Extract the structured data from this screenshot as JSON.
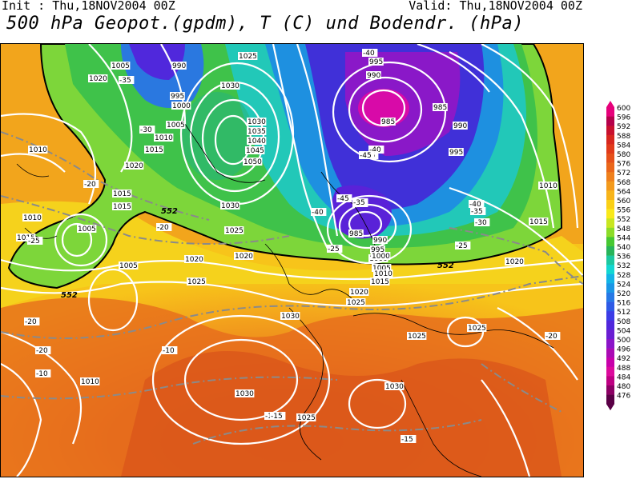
{
  "header": {
    "init": "Init : Thu,18NOV2004 00Z",
    "valid": "Valid: Thu,18NOV2004 00Z",
    "title": "500 hPa Geopot.(gpdm), T (C) und Bodendr. (hPa)"
  },
  "colorbar": {
    "levels": [
      "600",
      "596",
      "592",
      "588",
      "584",
      "580",
      "576",
      "572",
      "568",
      "564",
      "560",
      "556",
      "552",
      "548",
      "544",
      "540",
      "536",
      "532",
      "528",
      "524",
      "520",
      "516",
      "512",
      "508",
      "504",
      "500",
      "496",
      "492",
      "488",
      "484",
      "480",
      "476"
    ],
    "colors": [
      "#e6007a",
      "#b5004a",
      "#c8102e",
      "#d7261e",
      "#e13a1a",
      "#e6501a",
      "#ea661a",
      "#ef801c",
      "#f39a1c",
      "#f7b41a",
      "#fad016",
      "#f9e91a",
      "#c8e620",
      "#8cdc28",
      "#46c832",
      "#28b45a",
      "#1cc8a0",
      "#12d7d2",
      "#12b4e6",
      "#1a96e6",
      "#2678e6",
      "#2e5ae6",
      "#3c3ce6",
      "#5028dc",
      "#6a1ed2",
      "#8a14c8",
      "#aa0ab4",
      "#c800aa",
      "#dc0a9c",
      "#be0082",
      "#8c0064",
      "#5a0046"
    ]
  },
  "map": {
    "contour_552_label": "552",
    "pressure_labels": [
      "1005",
      "990",
      "1025",
      "995",
      "1000",
      "1005",
      "1010",
      "1015",
      "1020",
      "1030",
      "1035",
      "1040",
      "1045",
      "1050",
      "995",
      "990",
      "985",
      "985",
      "990",
      "995",
      "1010",
      "1015",
      "1020",
      "1010",
      "1005",
      "1030",
      "1025",
      "1020",
      "1015",
      "1000",
      "1005",
      "1020",
      "1025",
      "1030",
      "1010",
      "1015",
      "1020",
      "1025",
      "1030",
      "1025",
      "1005",
      "1010",
      "1015",
      "1025",
      "1030",
      "1025",
      "1020",
      "1015",
      "1010",
      "1030",
      "985",
      "990",
      "995",
      "1000"
    ],
    "temperature_labels": [
      "-35",
      "-30",
      "-40",
      "-40",
      "-45",
      "-45",
      "-35",
      "-40",
      "-35",
      "-30",
      "-25",
      "-25",
      "-20",
      "-20",
      "-25",
      "-20",
      "-20",
      "-15",
      "-10",
      "-10",
      "-15",
      "-20",
      "-15",
      "-45",
      "-40",
      "-35"
    ]
  }
}
